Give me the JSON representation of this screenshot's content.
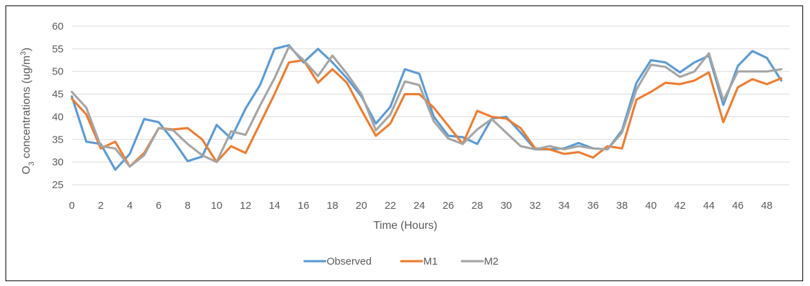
{
  "chart_data": {
    "type": "line",
    "xlabel": "Time (Hours)",
    "ylabel_main": "O",
    "ylabel_sub": "3",
    "ylabel_rest": " concentrations (ug/m",
    "ylabel_sup": "3",
    "ylabel_end": ")",
    "ylim": [
      25,
      60
    ],
    "yticks": [
      25,
      30,
      35,
      40,
      45,
      50,
      55,
      60
    ],
    "xlim": [
      0,
      49.6
    ],
    "xticks": [
      0,
      2,
      4,
      6,
      8,
      10,
      12,
      14,
      16,
      18,
      20,
      22,
      24,
      26,
      28,
      30,
      32,
      34,
      36,
      38,
      40,
      42,
      44,
      46,
      48
    ],
    "grid": true,
    "legend_position": "bottom",
    "series": [
      {
        "name": "Observed",
        "color": "#5b9bd5",
        "x": [
          0,
          1,
          2,
          3,
          4,
          5,
          6,
          7,
          8,
          9,
          10,
          11,
          12,
          13,
          14,
          15,
          16,
          17,
          18,
          19,
          20,
          21,
          22,
          23,
          24,
          25,
          26,
          27,
          28,
          29,
          30,
          31,
          32,
          33,
          34,
          35,
          36,
          37,
          38,
          39,
          40,
          41,
          42,
          43,
          44,
          45,
          46,
          47,
          48,
          49
        ],
        "values": [
          44.5,
          34.5,
          34.0,
          28.3,
          31.8,
          39.5,
          38.8,
          34.8,
          30.2,
          31.2,
          38.2,
          35.2,
          41.8,
          47.0,
          55.0,
          55.8,
          52.0,
          55.0,
          52.0,
          48.5,
          44.5,
          38.5,
          42.2,
          50.5,
          49.5,
          40.0,
          35.8,
          35.5,
          34.0,
          39.6,
          40.0,
          36.5,
          32.8,
          32.8,
          33.0,
          34.2,
          33.0,
          32.8,
          37.0,
          47.5,
          52.5,
          52.0,
          49.8,
          52.0,
          53.5,
          42.6,
          51.2,
          54.5,
          53.0,
          48.0
        ]
      },
      {
        "name": "M1",
        "color": "#ed7d31",
        "x": [
          0,
          1,
          2,
          3,
          4,
          5,
          6,
          7,
          8,
          9,
          10,
          11,
          12,
          13,
          14,
          15,
          16,
          17,
          18,
          19,
          20,
          21,
          22,
          23,
          24,
          25,
          26,
          27,
          28,
          29,
          30,
          31,
          32,
          33,
          34,
          35,
          36,
          37,
          38,
          39,
          40,
          41,
          42,
          43,
          44,
          45,
          46,
          47,
          48,
          49
        ],
        "values": [
          44.0,
          40.5,
          33.0,
          34.5,
          29.0,
          32.0,
          37.5,
          37.2,
          37.5,
          35.0,
          30.0,
          33.5,
          32.0,
          38.5,
          45.0,
          52.0,
          52.5,
          47.5,
          50.5,
          47.5,
          41.5,
          35.8,
          38.5,
          45.0,
          45.0,
          42.0,
          38.0,
          34.0,
          41.3,
          40.0,
          39.6,
          37.5,
          33.0,
          32.8,
          31.8,
          32.2,
          31.0,
          33.5,
          33.0,
          43.8,
          45.5,
          47.5,
          47.2,
          48.0,
          49.8,
          38.8,
          46.5,
          48.3,
          47.2,
          48.5
        ]
      },
      {
        "name": "M2",
        "color": "#a5a5a5",
        "x": [
          0,
          1,
          2,
          3,
          4,
          5,
          6,
          7,
          8,
          9,
          10,
          11,
          12,
          13,
          14,
          15,
          16,
          17,
          18,
          19,
          20,
          21,
          22,
          23,
          24,
          25,
          26,
          27,
          28,
          29,
          30,
          31,
          32,
          33,
          34,
          35,
          36,
          37,
          38,
          39,
          40,
          41,
          42,
          43,
          44,
          45,
          46,
          47,
          48,
          49
        ],
        "values": [
          45.5,
          42.0,
          33.5,
          33.0,
          29.0,
          31.5,
          37.5,
          37.0,
          34.0,
          31.5,
          30.0,
          36.8,
          36.0,
          42.5,
          48.5,
          55.5,
          52.5,
          49.0,
          53.5,
          49.5,
          45.0,
          37.0,
          40.5,
          47.8,
          47.0,
          39.0,
          35.2,
          34.0,
          37.2,
          39.5,
          36.5,
          33.5,
          32.8,
          33.5,
          32.8,
          33.5,
          33.0,
          32.8,
          36.5,
          46.0,
          51.5,
          51.0,
          48.8,
          50.0,
          54.0,
          43.6,
          50.0,
          50.0,
          50.0,
          50.5
        ]
      }
    ]
  }
}
